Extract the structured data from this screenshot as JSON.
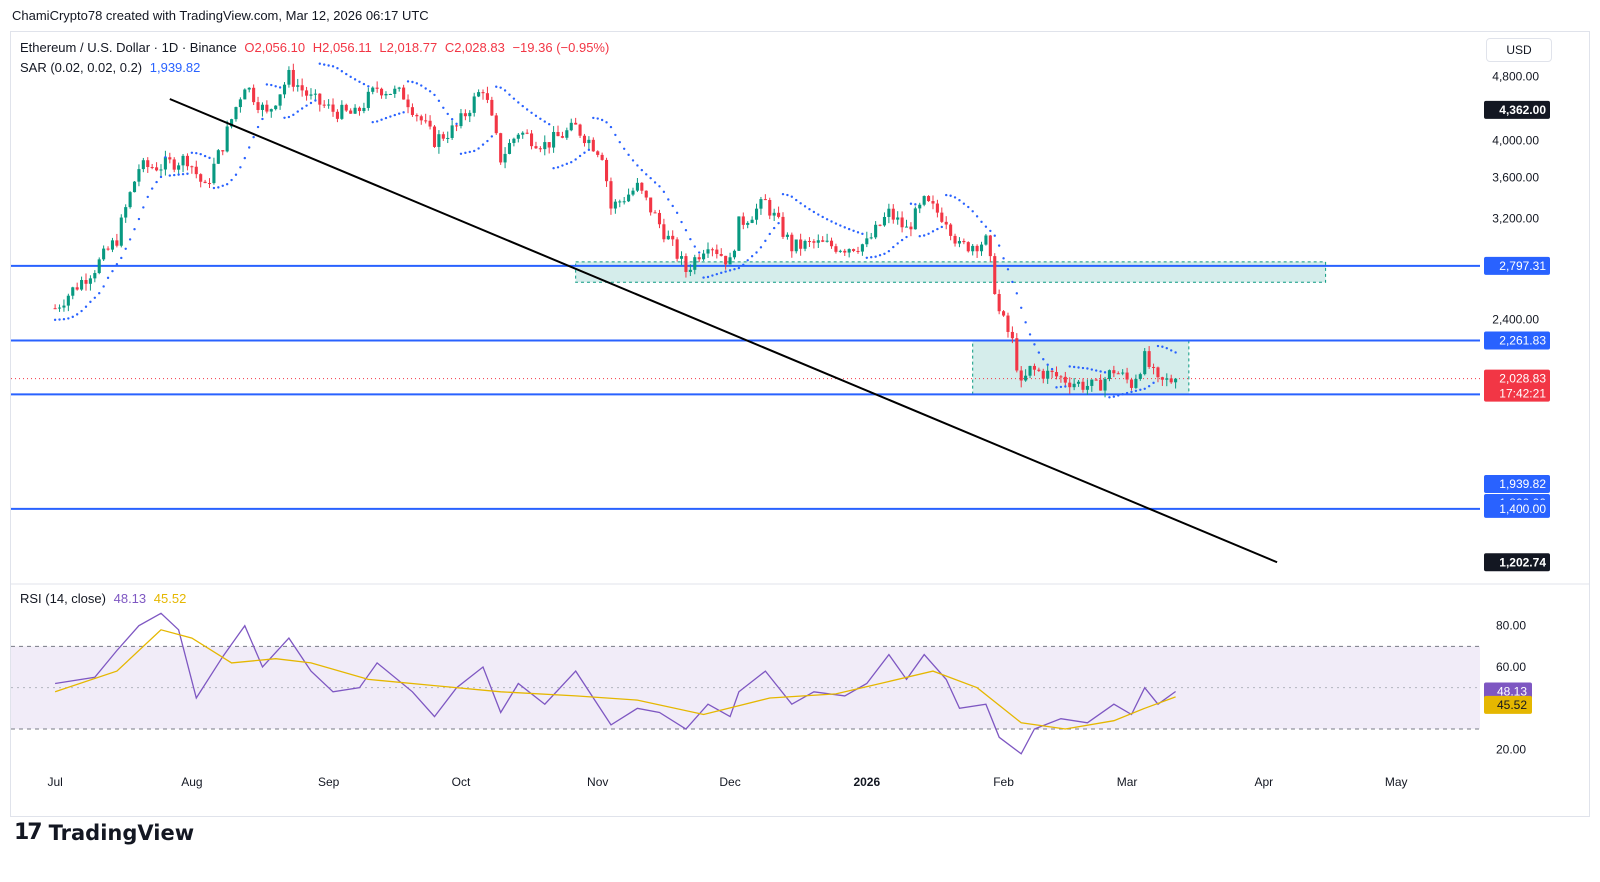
{
  "header": {
    "text": "ChamiCrypto78 created with TradingView.com, Mar 12, 2026 06:17 UTC"
  },
  "legend": {
    "symbol": "Ethereum / U.S. Dollar · 1D · Binance",
    "open": "O2,056.10",
    "high": "H2,056.11",
    "low": "L2,018.77",
    "close": "C2,028.83",
    "change": "−19.36 (−0.95%)",
    "sar_label": "SAR (0.02, 0.02, 0.2)",
    "sar_value": "1,939.82",
    "rsi_label": "RSI (14, close)",
    "rsi_value": "48.13",
    "rsi_ma_value": "45.52"
  },
  "currency_button": "USD",
  "logo": {
    "mark": "17",
    "text": "TradingView"
  },
  "colors": {
    "up": "#089981",
    "down": "#f23645",
    "sar": "#2962ff",
    "hline": "#2962ff",
    "zone_fill": "#b2dfdb",
    "zone_border": "#089981",
    "trend": "#000000",
    "rsi": "#7e57c2",
    "rsi_ma": "#e5b700",
    "rsi_band": "#ede7f6",
    "rsi_fill_ob": "#c8e6c9"
  },
  "chart_data": [
    {
      "type": "candlestick",
      "title": "Ethereum / U.S. Dollar · 1D · Binance",
      "x_ticks": [
        "Jul",
        "Aug",
        "Sep",
        "Oct",
        "Nov",
        "Dec",
        "2026",
        "Feb",
        "Mar",
        "Apr",
        "May"
      ],
      "y_ticks": [
        "4,800.00",
        "4,000.00",
        "3,600.00",
        "3,200.00",
        "2,400.00"
      ],
      "y_scale": "log",
      "ylim": [
        1150,
        5000
      ],
      "last_price": 2028.83,
      "countdown": "17:42:21",
      "price_labels": [
        {
          "value": 4362.0,
          "label": "4,362.00",
          "style": "dark"
        },
        {
          "value": 2797.31,
          "label": "2,797.31",
          "style": "blue"
        },
        {
          "value": 2261.83,
          "label": "2,261.83",
          "style": "blue"
        },
        {
          "value": 2028.83,
          "label": "2,028.83",
          "style": "red"
        },
        {
          "value": 1939.82,
          "label": "1,939.82",
          "style": "blue"
        },
        {
          "value": 1800.0,
          "label": "1,800.00",
          "style": "blue"
        },
        {
          "value": 1400.0,
          "label": "1,400.00",
          "style": "blue"
        },
        {
          "value": 1202.74,
          "label": "1,202.74",
          "style": "dark"
        }
      ],
      "horizontal_lines": [
        2797.31,
        2261.83,
        1939.82,
        1400.0
      ],
      "zones": [
        {
          "from_date": "2025-10-27",
          "to_date": "2026-04-15",
          "low": 2670,
          "high": 2830
        },
        {
          "from_date": "2026-01-25",
          "to_date": "2026-03-15",
          "low": 1939.82,
          "high": 2261.83
        }
      ],
      "trendline": [
        {
          "date": "2025-07-27",
          "price": 4500
        },
        {
          "date": "2026-04-04",
          "price": 1202.74
        }
      ],
      "close_series": [
        {
          "date": "2025-07-01",
          "close": 2480
        },
        {
          "date": "2025-07-10",
          "close": 2780
        },
        {
          "date": "2025-07-15",
          "close": 3020
        },
        {
          "date": "2025-07-20",
          "close": 3700
        },
        {
          "date": "2025-07-25",
          "close": 3720
        },
        {
          "date": "2025-07-31",
          "close": 3800
        },
        {
          "date": "2025-08-04",
          "close": 3480
        },
        {
          "date": "2025-08-08",
          "close": 3950
        },
        {
          "date": "2025-08-13",
          "close": 4700
        },
        {
          "date": "2025-08-18",
          "close": 4300
        },
        {
          "date": "2025-08-23",
          "close": 4800
        },
        {
          "date": "2025-08-28",
          "close": 4500
        },
        {
          "date": "2025-09-02",
          "close": 4350
        },
        {
          "date": "2025-09-07",
          "close": 4300
        },
        {
          "date": "2025-09-12",
          "close": 4650
        },
        {
          "date": "2025-09-18",
          "close": 4550
        },
        {
          "date": "2025-09-25",
          "close": 4000
        },
        {
          "date": "2025-09-30",
          "close": 4150
        },
        {
          "date": "2025-10-06",
          "close": 4650
        },
        {
          "date": "2025-10-10",
          "close": 3800
        },
        {
          "date": "2025-10-14",
          "close": 4100
        },
        {
          "date": "2025-10-20",
          "close": 3950
        },
        {
          "date": "2025-10-27",
          "close": 4150
        },
        {
          "date": "2025-11-02",
          "close": 3850
        },
        {
          "date": "2025-11-04",
          "close": 3300
        },
        {
          "date": "2025-11-10",
          "close": 3500
        },
        {
          "date": "2025-11-15",
          "close": 3150
        },
        {
          "date": "2025-11-21",
          "close": 2760
        },
        {
          "date": "2025-11-26",
          "close": 3000
        },
        {
          "date": "2025-12-01",
          "close": 2820
        },
        {
          "date": "2025-12-03",
          "close": 3150
        },
        {
          "date": "2025-12-09",
          "close": 3350
        },
        {
          "date": "2025-12-15",
          "close": 2950
        },
        {
          "date": "2025-12-20",
          "close": 2980
        },
        {
          "date": "2025-12-27",
          "close": 2950
        },
        {
          "date": "2026-01-01",
          "close": 2980
        },
        {
          "date": "2026-01-06",
          "close": 3250
        },
        {
          "date": "2026-01-10",
          "close": 3100
        },
        {
          "date": "2026-01-14",
          "close": 3350
        },
        {
          "date": "2026-01-19",
          "close": 3200
        },
        {
          "date": "2026-01-22",
          "close": 2950
        },
        {
          "date": "2026-01-28",
          "close": 3000
        },
        {
          "date": "2026-01-31",
          "close": 2450
        },
        {
          "date": "2026-02-03",
          "close": 2250
        },
        {
          "date": "2026-02-05",
          "close": 1980
        },
        {
          "date": "2026-02-07",
          "close": 2080
        },
        {
          "date": "2026-02-12",
          "close": 2050
        },
        {
          "date": "2026-02-18",
          "close": 2000
        },
        {
          "date": "2026-02-22",
          "close": 1980
        },
        {
          "date": "2026-02-26",
          "close": 2080
        },
        {
          "date": "2026-03-02",
          "close": 2000
        },
        {
          "date": "2026-03-05",
          "close": 2150
        },
        {
          "date": "2026-03-08",
          "close": 2000
        },
        {
          "date": "2026-03-12",
          "close": 2028.83
        }
      ]
    },
    {
      "type": "line",
      "title": "RSI (14, close)",
      "y_ticks": [
        "80.00",
        "60.00",
        "20.00"
      ],
      "ylim": [
        15,
        90
      ],
      "bands": [
        30,
        70
      ],
      "midline": 50,
      "current_rsi": 48.13,
      "current_ma": 45.52,
      "series": [
        {
          "key": "rsi",
          "points": [
            [
              "2025-07-01",
              52
            ],
            [
              "2025-07-10",
              55
            ],
            [
              "2025-07-15",
              68
            ],
            [
              "2025-07-20",
              80
            ],
            [
              "2025-07-25",
              86
            ],
            [
              "2025-07-29",
              78
            ],
            [
              "2025-08-02",
              45
            ],
            [
              "2025-08-08",
              65
            ],
            [
              "2025-08-13",
              80
            ],
            [
              "2025-08-17",
              60
            ],
            [
              "2025-08-23",
              74
            ],
            [
              "2025-08-28",
              58
            ],
            [
              "2025-09-02",
              48
            ],
            [
              "2025-09-08",
              50
            ],
            [
              "2025-09-12",
              62
            ],
            [
              "2025-09-20",
              48
            ],
            [
              "2025-09-25",
              36
            ],
            [
              "2025-09-30",
              50
            ],
            [
              "2025-10-06",
              60
            ],
            [
              "2025-10-10",
              38
            ],
            [
              "2025-10-14",
              52
            ],
            [
              "2025-10-20",
              42
            ],
            [
              "2025-10-27",
              58
            ],
            [
              "2025-11-04",
              32
            ],
            [
              "2025-11-10",
              40
            ],
            [
              "2025-11-15",
              38
            ],
            [
              "2025-11-21",
              30
            ],
            [
              "2025-11-26",
              42
            ],
            [
              "2025-12-01",
              36
            ],
            [
              "2025-12-03",
              48
            ],
            [
              "2025-12-09",
              58
            ],
            [
              "2025-12-15",
              42
            ],
            [
              "2025-12-20",
              48
            ],
            [
              "2025-12-27",
              46
            ],
            [
              "2026-01-01",
              52
            ],
            [
              "2026-01-06",
              66
            ],
            [
              "2026-01-10",
              54
            ],
            [
              "2026-01-14",
              66
            ],
            [
              "2026-01-19",
              54
            ],
            [
              "2026-01-22",
              40
            ],
            [
              "2026-01-28",
              42
            ],
            [
              "2026-01-31",
              26
            ],
            [
              "2026-02-05",
              18
            ],
            [
              "2026-02-08",
              30
            ],
            [
              "2026-02-14",
              35
            ],
            [
              "2026-02-20",
              33
            ],
            [
              "2026-02-26",
              42
            ],
            [
              "2026-03-02",
              37
            ],
            [
              "2026-03-05",
              50
            ],
            [
              "2026-03-08",
              42
            ],
            [
              "2026-03-12",
              48.13
            ]
          ]
        },
        {
          "key": "rsi_ma",
          "points": [
            [
              "2025-07-01",
              48
            ],
            [
              "2025-07-15",
              58
            ],
            [
              "2025-07-25",
              78
            ],
            [
              "2025-08-01",
              74
            ],
            [
              "2025-08-10",
              62
            ],
            [
              "2025-08-20",
              64
            ],
            [
              "2025-08-28",
              62
            ],
            [
              "2025-09-10",
              54
            ],
            [
              "2025-09-25",
              51
            ],
            [
              "2025-10-10",
              48
            ],
            [
              "2025-10-27",
              46
            ],
            [
              "2025-11-10",
              44
            ],
            [
              "2025-11-25",
              37
            ],
            [
              "2025-12-10",
              45
            ],
            [
              "2025-12-25",
              47
            ],
            [
              "2026-01-06",
              53
            ],
            [
              "2026-01-16",
              58
            ],
            [
              "2026-01-26",
              50
            ],
            [
              "2026-02-05",
              33
            ],
            [
              "2026-02-15",
              30
            ],
            [
              "2026-02-26",
              34
            ],
            [
              "2026-03-05",
              40
            ],
            [
              "2026-03-12",
              45.52
            ]
          ]
        }
      ]
    }
  ]
}
